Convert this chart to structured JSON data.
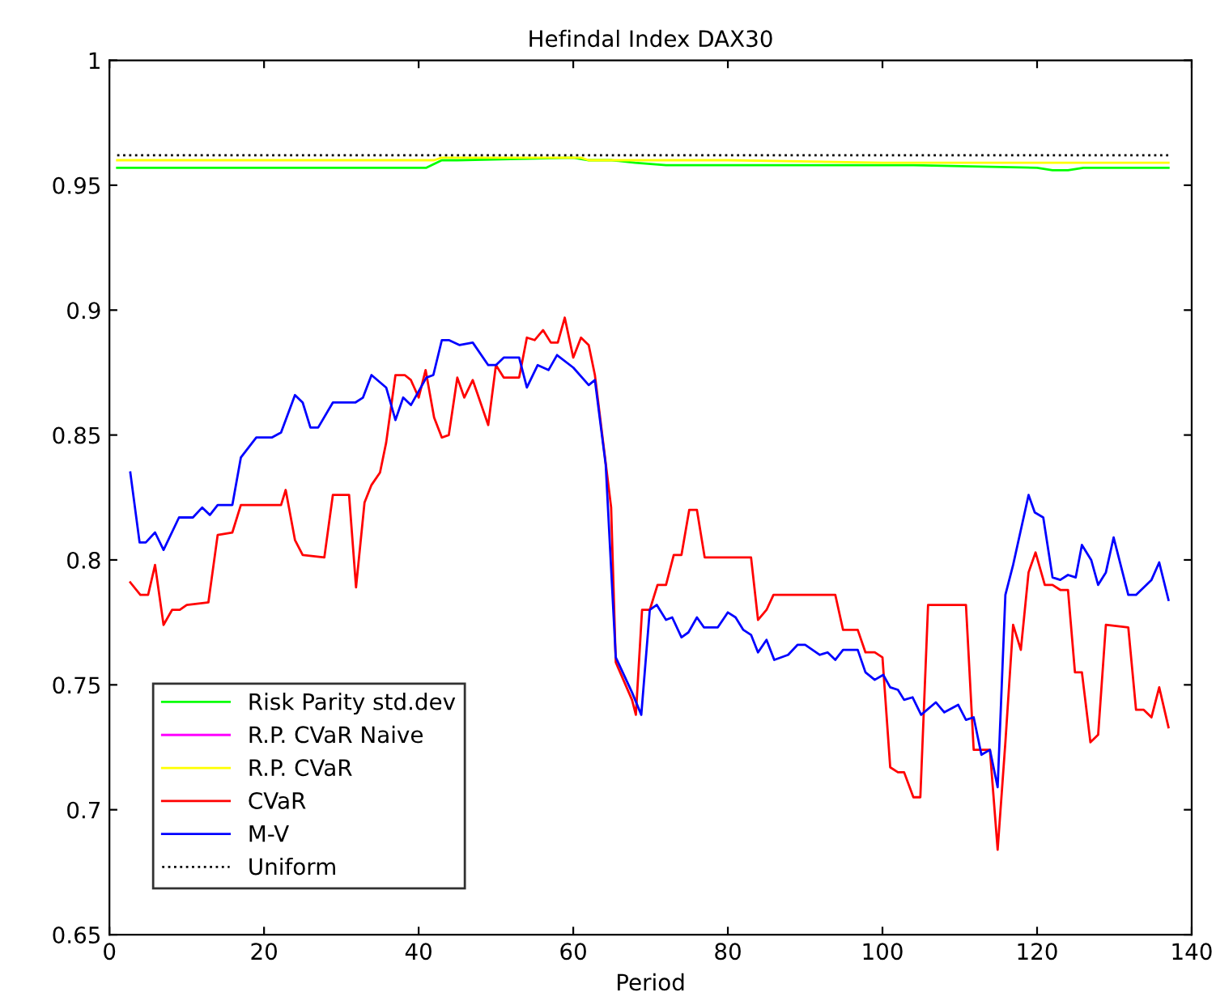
{
  "chart_data": {
    "type": "line",
    "title": "Hefindal Index DAX30",
    "xlabel": "Period",
    "xlim": [
      0,
      140
    ],
    "xticks": [
      0,
      20,
      40,
      60,
      80,
      100,
      120,
      140
    ],
    "ylim": [
      0.65,
      1
    ],
    "yticks": [
      0.65,
      0.7,
      0.75,
      0.8,
      0.85,
      0.9,
      0.95,
      1
    ],
    "grid": false,
    "legend": "bottom left",
    "line_style": "solid",
    "marker": "none",
    "series": [
      {
        "name": "Risk Parity std.dev",
        "color": "#00ff00",
        "x": [
          1,
          7,
          10,
          20,
          30,
          37,
          40,
          41,
          43,
          45,
          60,
          62,
          65,
          68,
          72,
          80,
          100,
          104,
          120,
          122,
          124,
          126,
          130,
          134,
          136,
          137
        ],
        "values": [
          0.957,
          0.957,
          0.957,
          0.957,
          0.957,
          0.957,
          0.957,
          0.957,
          0.96,
          0.96,
          0.961,
          0.96,
          0.96,
          0.959,
          0.958,
          0.958,
          0.958,
          0.958,
          0.957,
          0.956,
          0.956,
          0.957,
          0.957,
          0.957,
          0.957,
          0.957
        ]
      },
      {
        "name": "R.P. CVaR Naive",
        "color": "#ff00ff"
      },
      {
        "name": "R.P. CVaR",
        "color": "#ffff00",
        "x": [
          1,
          20,
          42,
          43,
          61,
          62,
          80,
          100,
          120,
          137
        ],
        "values": [
          0.96,
          0.96,
          0.96,
          0.961,
          0.961,
          0.96,
          0.96,
          0.959,
          0.959,
          0.959
        ]
      },
      {
        "name": "CVaR",
        "color": "#ff0000",
        "x": [
          2.7,
          4,
          5,
          5.9,
          7,
          8.1,
          9.1,
          10,
          12.8,
          14,
          15.9,
          17,
          22.2,
          22.8,
          24,
          25,
          27.8,
          28.9,
          31,
          31.9,
          33,
          33.9,
          35,
          35.8,
          37,
          38.2,
          39,
          40,
          40.9,
          42,
          43,
          43.9,
          45,
          45.9,
          47,
          49,
          50,
          51,
          53,
          54,
          55,
          56.1,
          57.1,
          58,
          58.9,
          60,
          61,
          62,
          62.8,
          64.9,
          65.5,
          67.6,
          68.1,
          68.9,
          69.9,
          70.9,
          72,
          73,
          74,
          75,
          76,
          77,
          83,
          83.9,
          85,
          85.9,
          93.9,
          94.9,
          96.8,
          97.8,
          99,
          100,
          101,
          102,
          102.8,
          104,
          104.9,
          105.9,
          110.8,
          111.8,
          113.9,
          114.9,
          115.9,
          116.9,
          117.9,
          118.9,
          119.8,
          121,
          122,
          123,
          124,
          124.9,
          125.8,
          126.9,
          127.9,
          128.9,
          131.8,
          132.8,
          133.8,
          134.8,
          135.8,
          137
        ],
        "values": [
          0.791,
          0.786,
          0.786,
          0.798,
          0.774,
          0.78,
          0.78,
          0.782,
          0.783,
          0.81,
          0.811,
          0.822,
          0.822,
          0.828,
          0.808,
          0.802,
          0.801,
          0.826,
          0.826,
          0.789,
          0.823,
          0.83,
          0.835,
          0.847,
          0.874,
          0.874,
          0.872,
          0.865,
          0.876,
          0.857,
          0.849,
          0.85,
          0.873,
          0.865,
          0.872,
          0.854,
          0.878,
          0.873,
          0.873,
          0.889,
          0.888,
          0.892,
          0.887,
          0.887,
          0.897,
          0.881,
          0.889,
          0.886,
          0.874,
          0.821,
          0.759,
          0.744,
          0.738,
          0.78,
          0.78,
          0.79,
          0.79,
          0.802,
          0.802,
          0.82,
          0.82,
          0.801,
          0.801,
          0.776,
          0.78,
          0.786,
          0.786,
          0.772,
          0.772,
          0.763,
          0.763,
          0.761,
          0.717,
          0.715,
          0.715,
          0.705,
          0.705,
          0.782,
          0.782,
          0.724,
          0.724,
          0.684,
          0.727,
          0.774,
          0.764,
          0.795,
          0.803,
          0.79,
          0.79,
          0.788,
          0.788,
          0.755,
          0.755,
          0.727,
          0.73,
          0.774,
          0.773,
          0.74,
          0.74,
          0.737,
          0.749,
          0.733
        ]
      },
      {
        "name": "M-V",
        "color": "#0000ff",
        "x": [
          2.7,
          3.9,
          4.7,
          5.9,
          7,
          9,
          10.8,
          12,
          13,
          14,
          15.9,
          17,
          19,
          21,
          22.2,
          24,
          25,
          26,
          27,
          28.9,
          30.4,
          31.8,
          32.8,
          33.9,
          35.8,
          37,
          38,
          39,
          41,
          41.9,
          43,
          43.9,
          45.3,
          47,
          49,
          50,
          51,
          53,
          54,
          55.4,
          56.8,
          57.9,
          60,
          62,
          62.8,
          64.2,
          65.5,
          67.6,
          68.8,
          69.9,
          70.8,
          72,
          72.8,
          74,
          74.9,
          76,
          76.9,
          78.7,
          80,
          81,
          82,
          83,
          83.9,
          85,
          86,
          87.8,
          89,
          90,
          91.9,
          92.9,
          93.9,
          94.9,
          96.8,
          97.8,
          99,
          100.1,
          101,
          102,
          102.8,
          103.9,
          105,
          106.9,
          108,
          109.8,
          110.8,
          111.8,
          112.8,
          113.9,
          114.9,
          115.9,
          116.9,
          118.9,
          119.7,
          120.8,
          122,
          123,
          124,
          125,
          125.8,
          127,
          127.9,
          128.9,
          129.9,
          131.8,
          132.8,
          134.8,
          135.8,
          137
        ],
        "values": [
          0.835,
          0.807,
          0.807,
          0.811,
          0.804,
          0.817,
          0.817,
          0.821,
          0.818,
          0.822,
          0.822,
          0.841,
          0.849,
          0.849,
          0.851,
          0.866,
          0.863,
          0.853,
          0.853,
          0.863,
          0.863,
          0.863,
          0.865,
          0.874,
          0.869,
          0.856,
          0.865,
          0.862,
          0.873,
          0.874,
          0.888,
          0.888,
          0.886,
          0.887,
          0.878,
          0.878,
          0.881,
          0.881,
          0.869,
          0.878,
          0.876,
          0.882,
          0.877,
          0.87,
          0.872,
          0.838,
          0.761,
          0.747,
          0.738,
          0.78,
          0.782,
          0.776,
          0.777,
          0.769,
          0.771,
          0.777,
          0.773,
          0.773,
          0.779,
          0.777,
          0.772,
          0.77,
          0.763,
          0.768,
          0.76,
          0.762,
          0.766,
          0.766,
          0.762,
          0.763,
          0.76,
          0.764,
          0.764,
          0.755,
          0.752,
          0.754,
          0.749,
          0.748,
          0.744,
          0.745,
          0.738,
          0.743,
          0.739,
          0.742,
          0.736,
          0.737,
          0.722,
          0.724,
          0.709,
          0.786,
          0.798,
          0.826,
          0.819,
          0.817,
          0.793,
          0.792,
          0.794,
          0.793,
          0.806,
          0.8,
          0.79,
          0.795,
          0.809,
          0.786,
          0.786,
          0.792,
          0.799,
          0.784
        ]
      },
      {
        "name": "Uniform",
        "color": "#000000",
        "x": [
          1,
          137
        ],
        "values": [
          0.962,
          0.962
        ],
        "line_style": "dotted"
      }
    ]
  }
}
